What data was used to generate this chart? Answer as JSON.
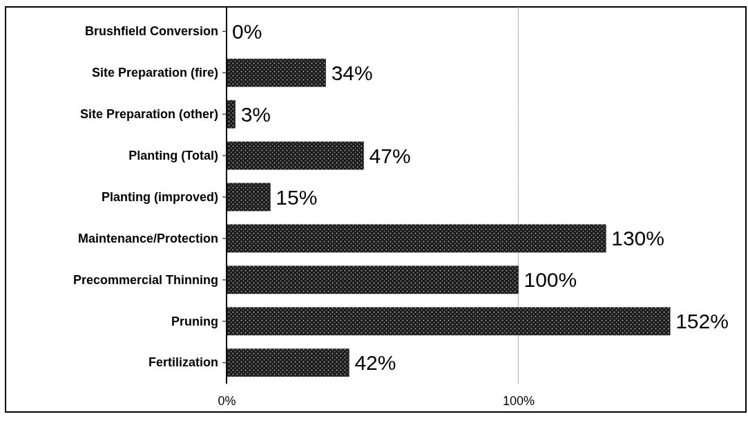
{
  "chart_data": {
    "type": "bar",
    "orientation": "horizontal",
    "categories": [
      "Brushfield Conversion",
      "Site Preparation (fire)",
      "Site Preparation (other)",
      "Planting (Total)",
      "Planting (improved)",
      "Maintenance/Protection",
      "Precommercial Thinning",
      "Pruning",
      "Fertilization"
    ],
    "values": [
      0,
      34,
      3,
      47,
      15,
      130,
      100,
      152,
      42
    ],
    "value_labels": [
      "0%",
      "34%",
      "3%",
      "47%",
      "15%",
      "130%",
      "100%",
      "152%",
      "42%"
    ],
    "color": "#1a1a1a",
    "xlim": [
      0,
      178
    ],
    "xticks": [
      {
        "value": 0,
        "label": "0%"
      },
      {
        "value": 100,
        "label": "100%"
      }
    ],
    "grid": "x"
  }
}
